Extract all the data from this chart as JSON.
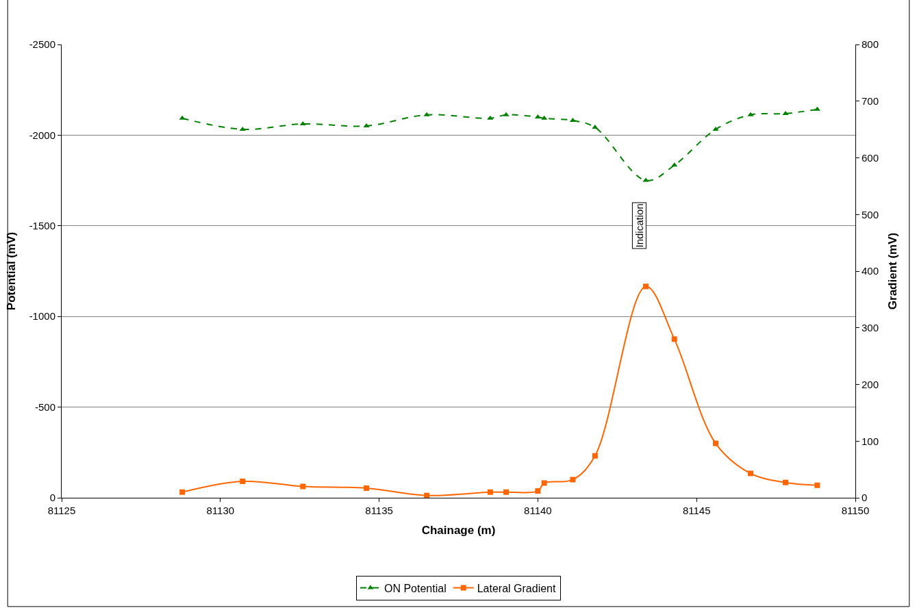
{
  "chart_data": {
    "type": "line",
    "xlabel": "Chainage (m)",
    "ylabel": "Potential (mV)",
    "y2label": "Gradient (mV)",
    "xlim": [
      81125,
      81150
    ],
    "xticks": [
      81125,
      81130,
      81135,
      81140,
      81145,
      81150
    ],
    "ylim": [
      0,
      -2500
    ],
    "yticks": [
      -2500,
      -2000,
      -1500,
      -1000,
      -500,
      0
    ],
    "y2lim": [
      0,
      800
    ],
    "y2ticks": [
      0,
      100,
      200,
      300,
      400,
      500,
      600,
      700,
      800
    ],
    "grid": "y",
    "legend": "bottom",
    "x": [
      81128.8,
      81130.7,
      81132.6,
      81134.6,
      81136.5,
      81138.5,
      81139.0,
      81140.0,
      81140.2,
      81141.1,
      81141.8,
      81143.4,
      81144.3,
      81145.6,
      81146.7,
      81147.8,
      81148.8
    ],
    "series": [
      {
        "name": "ON Potential",
        "color": "#008000",
        "marker": "triangle",
        "line_style": "dashed",
        "values": [
          -2093,
          -2032,
          -2062,
          -2051,
          -2112,
          -2093,
          -2112,
          -2100,
          -2093,
          -2081,
          -2043,
          -1750,
          -1834,
          -2032,
          -2112,
          -2119,
          -2142
        ]
      },
      {
        "name": "Lateral Gradient",
        "color": "#ff6600",
        "marker": "square",
        "line_style": "solid",
        "axis": "y2",
        "values": [
          10,
          29,
          20,
          17,
          4,
          10,
          10,
          12,
          26,
          32,
          74,
          373,
          280,
          96,
          43,
          27,
          22
        ]
      }
    ],
    "annotations": [
      "Indication"
    ]
  }
}
